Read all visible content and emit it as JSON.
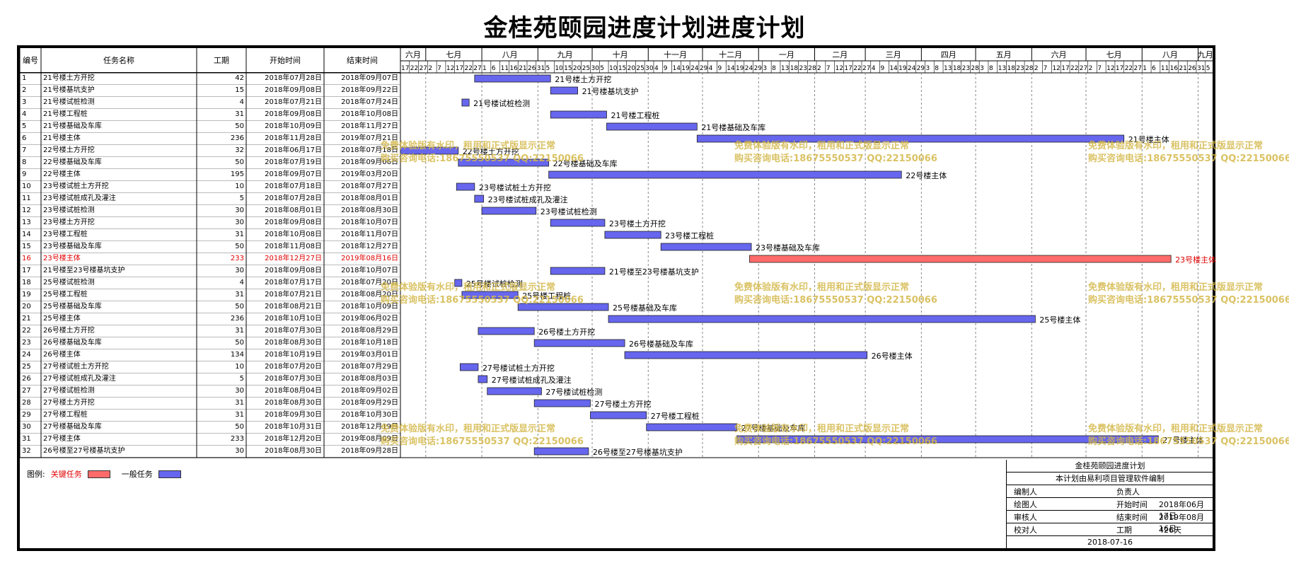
{
  "title": "金桂苑颐园进度计划进度计划",
  "columns": {
    "id": "编号",
    "name": "任务名称",
    "duration": "工期",
    "start": "开始时间",
    "end": "结束时间"
  },
  "timeline": {
    "months": [
      "六月",
      "七月",
      "八月",
      "九月",
      "十月",
      "十一月",
      "十二月",
      "一月",
      "二月",
      "三月",
      "四月",
      "五月",
      "六月",
      "七月",
      "八月",
      "九月"
    ],
    "day_ticks": [
      "17",
      "22",
      "27",
      "2",
      "7",
      "12",
      "17",
      "22",
      "27",
      "1",
      "6",
      "11",
      "16",
      "21",
      "26",
      "31",
      "5",
      "10",
      "15",
      "20",
      "25",
      "30",
      "5",
      "10",
      "15",
      "20",
      "25",
      "30",
      "4",
      "9",
      "14",
      "19",
      "24",
      "29",
      "4",
      "9",
      "14",
      "19",
      "24",
      "29",
      "3",
      "8",
      "13",
      "18",
      "23",
      "28",
      "2",
      "7",
      "12",
      "17",
      "22",
      "27",
      "4",
      "9",
      "14",
      "19",
      "24",
      "29",
      "3",
      "8",
      "13",
      "18",
      "23",
      "28",
      "3",
      "8",
      "13",
      "18",
      "23",
      "28",
      "2",
      "7",
      "12",
      "17",
      "22",
      "27",
      "2",
      "7",
      "12",
      "17",
      "22",
      "27",
      "1",
      "6",
      "11",
      "16",
      "21",
      "26",
      "31",
      "5"
    ]
  },
  "legend": {
    "label": "图例:",
    "critical": "关键任务",
    "normal": "一般任务",
    "critical_color": "#ff6b6b",
    "normal_color": "#6666ee"
  },
  "watermark": {
    "line1": "免费体验版有水印，租用和正式版显示正常",
    "line2": "购买咨询电话:18675550537 QQ:22150066"
  },
  "info": {
    "title": "金桂苑颐园进度计划",
    "subtitle": "本计划由易利项目管理软件编制",
    "compiler": "编制人",
    "owner": "负责人",
    "drawer": "绘图人",
    "start_label": "开始时间",
    "start_value": "2018年06月17日",
    "reviewer": "审核人",
    "end_label": "结束时间",
    "end_value": "2019年08月16日",
    "checker": "校对人",
    "dur_label": "工期",
    "dur_value": "426天",
    "date": "2018-07-16"
  },
  "chart_data": {
    "type": "gantt",
    "title": "金桂苑颐园进度计划进度计划",
    "x_range": [
      "2018-06-17",
      "2019-09-09"
    ],
    "tasks": [
      {
        "id": "1",
        "name": "21号楼土方开挖",
        "duration": "42",
        "start": "2018年07月28日",
        "end": "2018年09月07日",
        "s": "2018-07-28",
        "e": "2018-09-07",
        "critical": false
      },
      {
        "id": "2",
        "name": "21号楼基坑支护",
        "duration": "15",
        "start": "2018年09月08日",
        "end": "2018年09月22日",
        "s": "2018-09-08",
        "e": "2018-09-22",
        "critical": false
      },
      {
        "id": "3",
        "name": "21号楼试桩检测",
        "duration": "4",
        "start": "2018年07月21日",
        "end": "2018年07月24日",
        "s": "2018-07-21",
        "e": "2018-07-24",
        "critical": false
      },
      {
        "id": "4",
        "name": "21号楼工程桩",
        "duration": "31",
        "start": "2018年09月08日",
        "end": "2018年10月08日",
        "s": "2018-09-08",
        "e": "2018-10-08",
        "critical": false
      },
      {
        "id": "5",
        "name": "21号楼基础及车库",
        "duration": "50",
        "start": "2018年10月09日",
        "end": "2018年11月27日",
        "s": "2018-10-09",
        "e": "2018-11-27",
        "critical": false
      },
      {
        "id": "6",
        "name": "21号楼主体",
        "duration": "236",
        "start": "2018年11月28日",
        "end": "2019年07月21日",
        "s": "2018-11-28",
        "e": "2019-07-21",
        "critical": false
      },
      {
        "id": "7",
        "name": "22号楼土方开挖",
        "duration": "32",
        "start": "2018年06月17日",
        "end": "2018年07月18日",
        "s": "2018-06-17",
        "e": "2018-07-18",
        "critical": false
      },
      {
        "id": "8",
        "name": "22号楼基础及车库",
        "duration": "50",
        "start": "2018年07月19日",
        "end": "2018年09月06日",
        "s": "2018-07-19",
        "e": "2018-09-06",
        "critical": false
      },
      {
        "id": "9",
        "name": "22号楼主体",
        "duration": "195",
        "start": "2018年09月07日",
        "end": "2019年03月20日",
        "s": "2018-09-07",
        "e": "2019-03-20",
        "critical": false
      },
      {
        "id": "10",
        "name": "23号楼试桩土方开挖",
        "duration": "10",
        "start": "2018年07月18日",
        "end": "2018年07月27日",
        "s": "2018-07-18",
        "e": "2018-07-27",
        "critical": false
      },
      {
        "id": "11",
        "name": "23号楼试桩成孔及灌注",
        "duration": "5",
        "start": "2018年07月28日",
        "end": "2018年08月01日",
        "s": "2018-07-28",
        "e": "2018-08-01",
        "critical": false
      },
      {
        "id": "12",
        "name": "23号楼试桩检测",
        "duration": "30",
        "start": "2018年08月01日",
        "end": "2018年08月30日",
        "s": "2018-08-01",
        "e": "2018-08-30",
        "critical": false
      },
      {
        "id": "13",
        "name": "23号楼土方开挖",
        "duration": "30",
        "start": "2018年09月08日",
        "end": "2018年10月07日",
        "s": "2018-09-08",
        "e": "2018-10-07",
        "critical": false
      },
      {
        "id": "14",
        "name": "23号楼工程桩",
        "duration": "31",
        "start": "2018年10月08日",
        "end": "2018年11月07日",
        "s": "2018-10-08",
        "e": "2018-11-07",
        "critical": false
      },
      {
        "id": "15",
        "name": "23号楼基础及车库",
        "duration": "50",
        "start": "2018年11月08日",
        "end": "2018年12月27日",
        "s": "2018-11-08",
        "e": "2018-12-27",
        "critical": false
      },
      {
        "id": "16",
        "name": "23号楼主体",
        "duration": "233",
        "start": "2018年12月27日",
        "end": "2019年08月16日",
        "s": "2018-12-27",
        "e": "2019-08-16",
        "critical": true
      },
      {
        "id": "17",
        "name": "21号楼至23号楼基坑支护",
        "duration": "30",
        "start": "2018年09月08日",
        "end": "2018年10月07日",
        "s": "2018-09-08",
        "e": "2018-10-07",
        "critical": false
      },
      {
        "id": "18",
        "name": "25号楼试桩检测",
        "duration": "4",
        "start": "2018年07月17日",
        "end": "2018年07月20日",
        "s": "2018-07-17",
        "e": "2018-07-20",
        "critical": false
      },
      {
        "id": "19",
        "name": "25号楼工程桩",
        "duration": "31",
        "start": "2018年07月21日",
        "end": "2018年08月20日",
        "s": "2018-07-21",
        "e": "2018-08-20",
        "critical": false
      },
      {
        "id": "20",
        "name": "25号楼基础及车库",
        "duration": "50",
        "start": "2018年08月21日",
        "end": "2018年10月09日",
        "s": "2018-08-21",
        "e": "2018-10-09",
        "critical": false
      },
      {
        "id": "21",
        "name": "25号楼主体",
        "duration": "236",
        "start": "2018年10月10日",
        "end": "2019年06月02日",
        "s": "2018-10-10",
        "e": "2019-06-02",
        "critical": false
      },
      {
        "id": "22",
        "name": "26号楼土方开挖",
        "duration": "31",
        "start": "2018年07月30日",
        "end": "2018年08月29日",
        "s": "2018-07-30",
        "e": "2018-08-29",
        "critical": false
      },
      {
        "id": "23",
        "name": "26号楼基础及车库",
        "duration": "50",
        "start": "2018年08月30日",
        "end": "2018年10月18日",
        "s": "2018-08-30",
        "e": "2018-10-18",
        "critical": false
      },
      {
        "id": "24",
        "name": "26号楼主体",
        "duration": "134",
        "start": "2018年10月19日",
        "end": "2019年03月01日",
        "s": "2018-10-19",
        "e": "2019-03-01",
        "critical": false
      },
      {
        "id": "25",
        "name": "27号楼试桩土方开挖",
        "duration": "10",
        "start": "2018年07月20日",
        "end": "2018年07月29日",
        "s": "2018-07-20",
        "e": "2018-07-29",
        "critical": false
      },
      {
        "id": "26",
        "name": "27号楼试桩成孔及灌注",
        "duration": "5",
        "start": "2018年07月30日",
        "end": "2018年08月03日",
        "s": "2018-07-30",
        "e": "2018-08-03",
        "critical": false
      },
      {
        "id": "27",
        "name": "27号楼试桩检测",
        "duration": "30",
        "start": "2018年08月04日",
        "end": "2018年09月02日",
        "s": "2018-08-04",
        "e": "2018-09-02",
        "critical": false
      },
      {
        "id": "28",
        "name": "27号楼土方开挖",
        "duration": "31",
        "start": "2018年08月30日",
        "end": "2018年09月29日",
        "s": "2018-08-30",
        "e": "2018-09-29",
        "critical": false
      },
      {
        "id": "29",
        "name": "27号楼工程桩",
        "duration": "31",
        "start": "2018年09月30日",
        "end": "2018年10月30日",
        "s": "2018-09-30",
        "e": "2018-10-30",
        "critical": false
      },
      {
        "id": "30",
        "name": "27号楼基础及车库",
        "duration": "50",
        "start": "2018年10月31日",
        "end": "2018年12月19日",
        "s": "2018-10-31",
        "e": "2018-12-19",
        "critical": false
      },
      {
        "id": "31",
        "name": "27号楼主体",
        "duration": "233",
        "start": "2018年12月20日",
        "end": "2019年08月09日",
        "s": "2018-12-20",
        "e": "2019-08-09",
        "critical": false
      },
      {
        "id": "32",
        "name": "26号楼至27号楼基坑支护",
        "duration": "30",
        "start": "2018年08月30日",
        "end": "2018年09月28日",
        "s": "2018-08-30",
        "e": "2018-09-28",
        "critical": false
      }
    ]
  }
}
